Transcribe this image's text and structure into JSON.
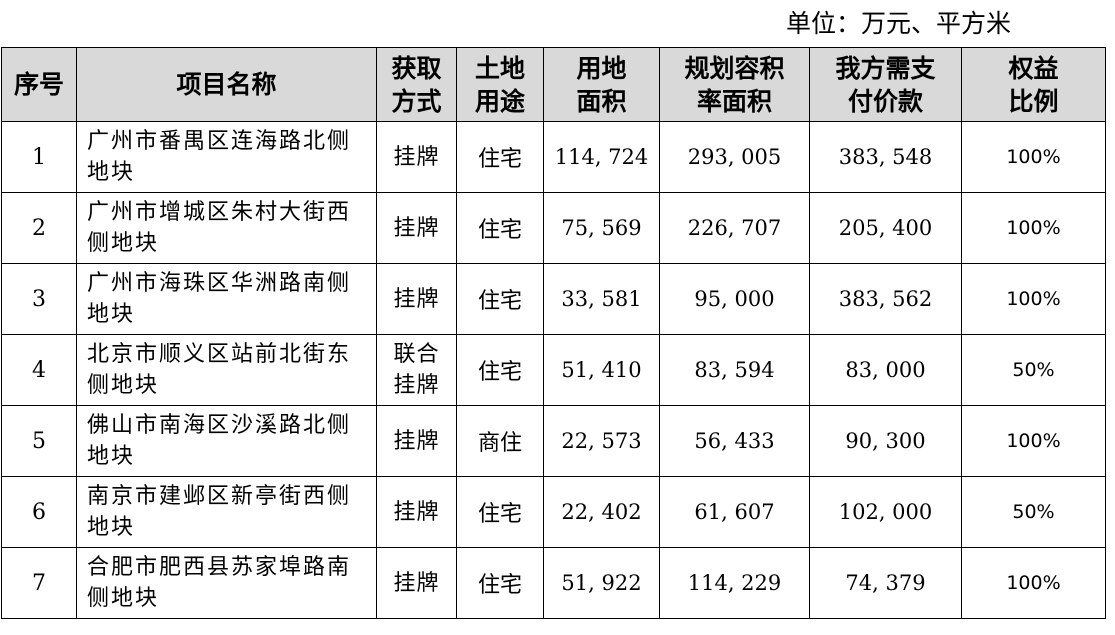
{
  "unit_label": "单位：万元、平方米",
  "headers": [
    "序号",
    "项目名称",
    "获取\n方式",
    "土地\n用途",
    "用地\n面积",
    "规划容积\n率面积",
    "我方需支\n付价款",
    "权益\n比例"
  ],
  "rows": [
    {
      "no": "1",
      "name": "广州市番禺区连海路北侧\n地块",
      "method": "挂牌",
      "use": "住宅",
      "area": "114, 724",
      "far_area": "293, 005",
      "payment": "383, 548",
      "equity": "100%"
    },
    {
      "no": "2",
      "name": "广州市增城区朱村大街西\n侧地块",
      "method": "挂牌",
      "use": "住宅",
      "area": "75, 569",
      "far_area": "226, 707",
      "payment": "205, 400",
      "equity": "100%"
    },
    {
      "no": "3",
      "name": "广州市海珠区华洲路南侧\n地块",
      "method": "挂牌",
      "use": "住宅",
      "area": "33, 581",
      "far_area": "95, 000",
      "payment": "383, 562",
      "equity": "100%"
    },
    {
      "no": "4",
      "name": "北京市顺义区站前北街东\n侧地块",
      "method": "联合\n挂牌",
      "use": "住宅",
      "area": "51, 410",
      "far_area": "83, 594",
      "payment": "83, 000",
      "equity": "50%"
    },
    {
      "no": "5",
      "name": "佛山市南海区沙溪路北侧\n地块",
      "method": "挂牌",
      "use": "商住",
      "area": "22, 573",
      "far_area": "56, 433",
      "payment": "90, 300",
      "equity": "100%"
    },
    {
      "no": "6",
      "name": "南京市建邺区新亭街西侧\n地块",
      "method": "挂牌",
      "use": "住宅",
      "area": "22, 402",
      "far_area": "61, 607",
      "payment": "102, 000",
      "equity": "50%"
    },
    {
      "no": "7",
      "name": "合肥市肥西县苏家埠路南\n侧地块",
      "method": "挂牌",
      "use": "住宅",
      "area": "51, 922",
      "far_area": "114, 229",
      "payment": "74, 379",
      "equity": "100%"
    }
  ]
}
